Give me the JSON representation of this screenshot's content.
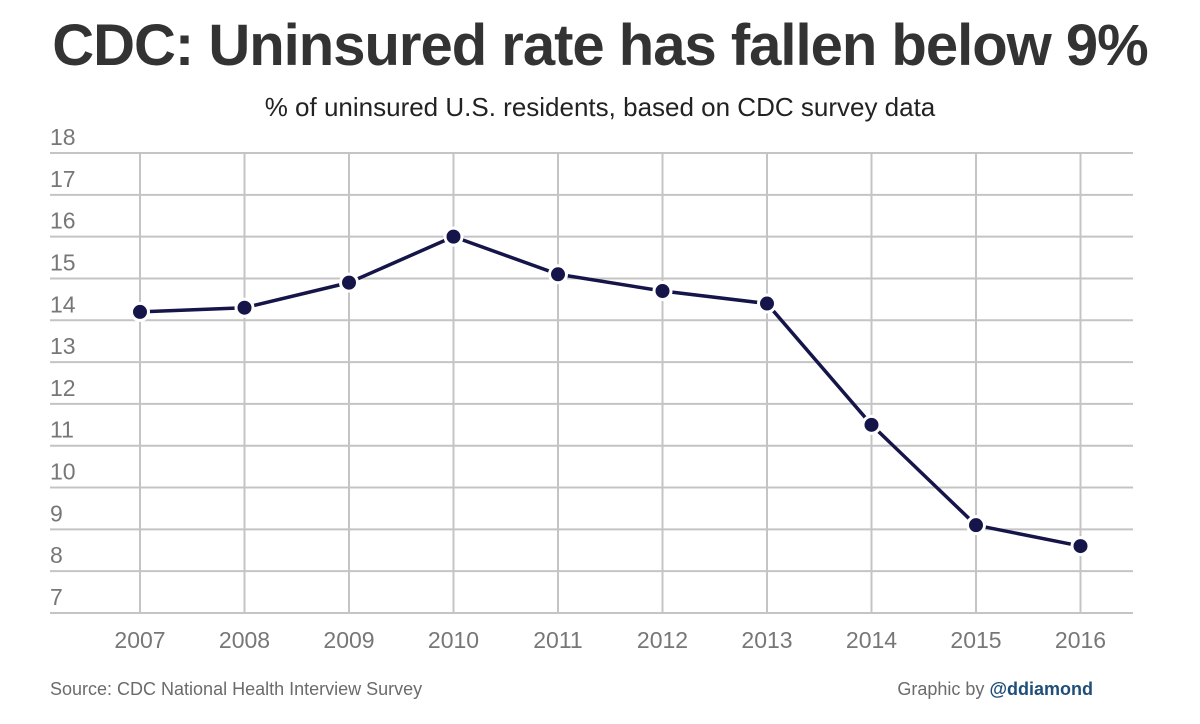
{
  "chart_data": {
    "type": "line",
    "title": "CDC: Uninsured rate has fallen below 9%",
    "subtitle": "% of uninsured U.S. residents, based on CDC survey data",
    "categories": [
      "2007",
      "2008",
      "2009",
      "2010",
      "2011",
      "2012",
      "2013",
      "2014",
      "2015",
      "2016"
    ],
    "series": [
      {
        "name": "Uninsured rate",
        "values": [
          14.2,
          14.3,
          14.9,
          16.0,
          15.1,
          14.7,
          14.4,
          11.5,
          9.1,
          8.6
        ]
      }
    ],
    "yticks": [
      "18",
      "17",
      "16",
      "15",
      "14",
      "13",
      "12",
      "11",
      "10",
      "9",
      "8",
      "7"
    ],
    "ylim": [
      7,
      18
    ],
    "xlabel": "",
    "ylabel": "",
    "grid": true,
    "line_color": "#15154a",
    "source": "Source: CDC National Health Interview Survey",
    "credit_prefix": "Graphic by",
    "credit_handle": "@ddiamond"
  }
}
